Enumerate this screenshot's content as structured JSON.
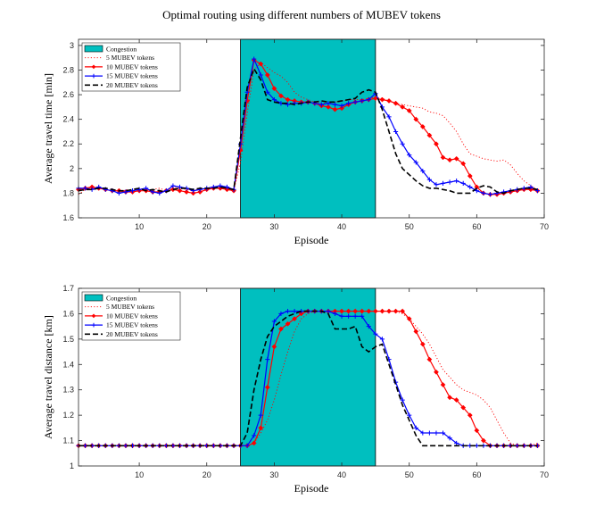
{
  "figure_title": "Optimal routing using different numbers of MUBEV tokens",
  "colors": {
    "congestion": "#00bfbf",
    "tokens5": "#ff0000",
    "tokens10": "#ff0000",
    "tokens15": "#0000ff",
    "tokens20": "#000000"
  },
  "chart_data": [
    {
      "type": "line",
      "title": "",
      "xlabel": "Episode",
      "ylabel": "Average travel time [min]",
      "xlim": [
        1,
        70
      ],
      "ylim": [
        1.6,
        3.05
      ],
      "xticks": [
        10,
        20,
        30,
        40,
        50,
        60,
        70
      ],
      "yticks": [
        1.6,
        1.8,
        2,
        2.2,
        2.4,
        2.6,
        2.8,
        3
      ],
      "ytick_labels": [
        "1.6",
        "1.8",
        "2",
        "2.2",
        "2.4",
        "2.6",
        "2.8",
        "3"
      ],
      "legend_position": "top-left",
      "congestion": {
        "label": "Congestion",
        "start": 25,
        "end": 45
      },
      "x": [
        1,
        2,
        3,
        4,
        5,
        6,
        7,
        8,
        9,
        10,
        11,
        12,
        13,
        14,
        15,
        16,
        17,
        18,
        19,
        20,
        21,
        22,
        23,
        24,
        25,
        26,
        27,
        28,
        29,
        30,
        31,
        32,
        33,
        34,
        35,
        36,
        37,
        38,
        39,
        40,
        41,
        42,
        43,
        44,
        45,
        46,
        47,
        48,
        49,
        50,
        51,
        52,
        53,
        54,
        55,
        56,
        57,
        58,
        59,
        60,
        61,
        62,
        63,
        64,
        65,
        66,
        67,
        68,
        69
      ],
      "series": [
        {
          "name": "5 MUBEV tokens",
          "style": "dotted",
          "color": "#ff0000",
          "values": [
            1.79,
            1.83,
            1.85,
            1.84,
            1.83,
            1.82,
            1.8,
            1.83,
            1.82,
            1.84,
            1.82,
            1.83,
            1.84,
            1.82,
            1.85,
            1.84,
            1.83,
            1.82,
            1.84,
            1.83,
            1.84,
            1.85,
            1.84,
            1.82,
            2.05,
            2.45,
            2.8,
            2.86,
            2.82,
            2.78,
            2.75,
            2.7,
            2.62,
            2.58,
            2.56,
            2.54,
            2.53,
            2.53,
            2.54,
            2.55,
            2.56,
            2.56,
            2.56,
            2.57,
            2.58,
            2.57,
            2.55,
            2.53,
            2.52,
            2.51,
            2.5,
            2.49,
            2.46,
            2.45,
            2.43,
            2.37,
            2.3,
            2.2,
            2.12,
            2.1,
            2.08,
            2.07,
            2.06,
            2.07,
            2.03,
            1.96,
            1.9,
            1.86,
            1.83
          ]
        },
        {
          "name": "10 MUBEV tokens",
          "style": "solid-diamond",
          "color": "#ff0000",
          "values": [
            1.83,
            1.84,
            1.85,
            1.84,
            1.83,
            1.82,
            1.82,
            1.81,
            1.81,
            1.82,
            1.82,
            1.81,
            1.81,
            1.82,
            1.83,
            1.82,
            1.81,
            1.8,
            1.81,
            1.83,
            1.84,
            1.84,
            1.83,
            1.82,
            2.15,
            2.55,
            2.88,
            2.85,
            2.76,
            2.65,
            2.59,
            2.56,
            2.55,
            2.54,
            2.54,
            2.53,
            2.51,
            2.5,
            2.48,
            2.49,
            2.52,
            2.54,
            2.55,
            2.56,
            2.57,
            2.56,
            2.55,
            2.53,
            2.5,
            2.47,
            2.4,
            2.34,
            2.27,
            2.2,
            2.09,
            2.07,
            2.08,
            2.04,
            1.94,
            1.85,
            1.8,
            1.79,
            1.79,
            1.8,
            1.81,
            1.82,
            1.83,
            1.83,
            1.82
          ]
        },
        {
          "name": "15 MUBEV tokens",
          "style": "solid-plus",
          "color": "#0000ff",
          "values": [
            1.84,
            1.84,
            1.83,
            1.85,
            1.83,
            1.82,
            1.8,
            1.81,
            1.82,
            1.83,
            1.84,
            1.81,
            1.8,
            1.82,
            1.86,
            1.85,
            1.84,
            1.82,
            1.83,
            1.84,
            1.85,
            1.86,
            1.85,
            1.83,
            2.2,
            2.62,
            2.89,
            2.76,
            2.62,
            2.56,
            2.53,
            2.52,
            2.53,
            2.53,
            2.54,
            2.53,
            2.52,
            2.53,
            2.52,
            2.51,
            2.53,
            2.54,
            2.55,
            2.56,
            2.61,
            2.5,
            2.42,
            2.3,
            2.2,
            2.11,
            2.05,
            1.98,
            1.91,
            1.87,
            1.88,
            1.89,
            1.9,
            1.88,
            1.85,
            1.82,
            1.8,
            1.79,
            1.8,
            1.81,
            1.82,
            1.83,
            1.84,
            1.85,
            1.82
          ]
        },
        {
          "name": "20 MUBEV tokens",
          "style": "dashed",
          "color": "#000000",
          "values": [
            1.82,
            1.83,
            1.83,
            1.84,
            1.84,
            1.83,
            1.82,
            1.82,
            1.83,
            1.84,
            1.82,
            1.83,
            1.82,
            1.81,
            1.83,
            1.84,
            1.84,
            1.83,
            1.84,
            1.84,
            1.84,
            1.85,
            1.84,
            1.83,
            2.25,
            2.66,
            2.81,
            2.72,
            2.56,
            2.54,
            2.53,
            2.53,
            2.52,
            2.53,
            2.54,
            2.54,
            2.55,
            2.54,
            2.54,
            2.55,
            2.56,
            2.57,
            2.62,
            2.64,
            2.62,
            2.48,
            2.3,
            2.12,
            2.0,
            1.95,
            1.9,
            1.86,
            1.84,
            1.84,
            1.83,
            1.82,
            1.8,
            1.8,
            1.8,
            1.84,
            1.86,
            1.85,
            1.81,
            1.8,
            1.82,
            1.83,
            1.84,
            1.84,
            1.83
          ]
        }
      ]
    },
    {
      "type": "line",
      "title": "",
      "xlabel": "Episode",
      "ylabel": "Average travel distance [km]",
      "xlim": [
        1,
        70
      ],
      "ylim": [
        1.0,
        1.7
      ],
      "xticks": [
        10,
        20,
        30,
        40,
        50,
        60,
        70
      ],
      "yticks": [
        1,
        1.1,
        1.2,
        1.3,
        1.4,
        1.5,
        1.6,
        1.7
      ],
      "ytick_labels": [
        "1",
        "1.1",
        "1.2",
        "1.3",
        "1.4",
        "1.5",
        "1.6",
        "1.7"
      ],
      "legend_position": "top-left",
      "congestion": {
        "label": "Congestion",
        "start": 25,
        "end": 45
      },
      "x": [
        1,
        2,
        3,
        4,
        5,
        6,
        7,
        8,
        9,
        10,
        11,
        12,
        13,
        14,
        15,
        16,
        17,
        18,
        19,
        20,
        21,
        22,
        23,
        24,
        25,
        26,
        27,
        28,
        29,
        30,
        31,
        32,
        33,
        34,
        35,
        36,
        37,
        38,
        39,
        40,
        41,
        42,
        43,
        44,
        45,
        46,
        47,
        48,
        49,
        50,
        51,
        52,
        53,
        54,
        55,
        56,
        57,
        58,
        59,
        60,
        61,
        62,
        63,
        64,
        65,
        66,
        67,
        68,
        69
      ],
      "series": [
        {
          "name": "5 MUBEV tokens",
          "style": "dotted",
          "color": "#ff0000",
          "values": [
            1.08,
            1.08,
            1.08,
            1.08,
            1.08,
            1.08,
            1.08,
            1.08,
            1.08,
            1.08,
            1.08,
            1.08,
            1.08,
            1.08,
            1.08,
            1.08,
            1.08,
            1.08,
            1.08,
            1.08,
            1.08,
            1.08,
            1.08,
            1.08,
            1.08,
            1.08,
            1.09,
            1.13,
            1.18,
            1.26,
            1.36,
            1.45,
            1.53,
            1.58,
            1.6,
            1.61,
            1.61,
            1.61,
            1.61,
            1.61,
            1.61,
            1.61,
            1.61,
            1.61,
            1.61,
            1.61,
            1.61,
            1.61,
            1.6,
            1.58,
            1.55,
            1.52,
            1.48,
            1.43,
            1.38,
            1.35,
            1.32,
            1.3,
            1.29,
            1.28,
            1.26,
            1.23,
            1.18,
            1.13,
            1.09,
            1.08,
            1.08,
            1.08,
            1.09
          ]
        },
        {
          "name": "10 MUBEV tokens",
          "style": "solid-diamond",
          "color": "#ff0000",
          "values": [
            1.08,
            1.08,
            1.08,
            1.08,
            1.08,
            1.08,
            1.08,
            1.08,
            1.08,
            1.08,
            1.08,
            1.08,
            1.08,
            1.08,
            1.08,
            1.08,
            1.08,
            1.08,
            1.08,
            1.08,
            1.08,
            1.08,
            1.08,
            1.08,
            1.08,
            1.08,
            1.09,
            1.15,
            1.31,
            1.47,
            1.54,
            1.56,
            1.58,
            1.6,
            1.61,
            1.61,
            1.61,
            1.61,
            1.61,
            1.61,
            1.61,
            1.61,
            1.61,
            1.61,
            1.61,
            1.61,
            1.61,
            1.61,
            1.61,
            1.58,
            1.53,
            1.48,
            1.42,
            1.37,
            1.32,
            1.27,
            1.26,
            1.23,
            1.2,
            1.14,
            1.1,
            1.08,
            1.08,
            1.08,
            1.08,
            1.08,
            1.08,
            1.08,
            1.08
          ]
        },
        {
          "name": "15 MUBEV tokens",
          "style": "solid-plus",
          "color": "#0000ff",
          "values": [
            1.08,
            1.08,
            1.08,
            1.08,
            1.08,
            1.08,
            1.08,
            1.08,
            1.08,
            1.08,
            1.08,
            1.08,
            1.08,
            1.08,
            1.08,
            1.08,
            1.08,
            1.08,
            1.08,
            1.08,
            1.08,
            1.08,
            1.08,
            1.08,
            1.08,
            1.08,
            1.12,
            1.2,
            1.42,
            1.57,
            1.6,
            1.61,
            1.61,
            1.61,
            1.61,
            1.61,
            1.61,
            1.61,
            1.6,
            1.59,
            1.59,
            1.59,
            1.59,
            1.55,
            1.52,
            1.5,
            1.42,
            1.33,
            1.26,
            1.2,
            1.15,
            1.13,
            1.13,
            1.13,
            1.13,
            1.11,
            1.09,
            1.08,
            1.08,
            1.08,
            1.08,
            1.08,
            1.08,
            1.08,
            1.08,
            1.08,
            1.08,
            1.08,
            1.08
          ]
        },
        {
          "name": "20 MUBEV tokens",
          "style": "dashed",
          "color": "#000000",
          "values": [
            1.08,
            1.08,
            1.08,
            1.08,
            1.08,
            1.08,
            1.08,
            1.08,
            1.08,
            1.08,
            1.08,
            1.08,
            1.08,
            1.08,
            1.08,
            1.08,
            1.08,
            1.08,
            1.08,
            1.08,
            1.08,
            1.08,
            1.08,
            1.08,
            1.08,
            1.13,
            1.3,
            1.42,
            1.51,
            1.55,
            1.57,
            1.59,
            1.6,
            1.61,
            1.61,
            1.61,
            1.61,
            1.6,
            1.54,
            1.54,
            1.54,
            1.55,
            1.47,
            1.45,
            1.47,
            1.48,
            1.4,
            1.32,
            1.24,
            1.18,
            1.12,
            1.08,
            1.08,
            1.08,
            1.08,
            1.08,
            1.08,
            1.08,
            1.08,
            1.08,
            1.08,
            1.08,
            1.08,
            1.08,
            1.08,
            1.08,
            1.08,
            1.08,
            1.08
          ]
        }
      ]
    }
  ]
}
